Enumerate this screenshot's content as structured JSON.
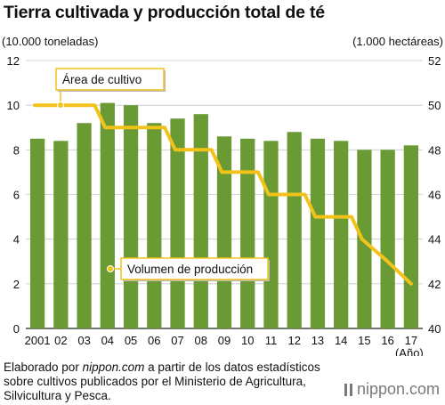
{
  "title": "Tierra cultivada y producción total de té",
  "source": {
    "prefix": "Elaborado por ",
    "site": "nippon.com",
    "rest": " a partir de los datos estadísticos sobre cultivos publicados por el Ministerio de Agricultura, Silvicultura y Pesca."
  },
  "brand": "nippon.com",
  "chart_data": {
    "type": "bar+line",
    "categories": [
      "2001",
      "02",
      "03",
      "04",
      "05",
      "06",
      "07",
      "08",
      "09",
      "10",
      "11",
      "12",
      "13",
      "14",
      "15",
      "16",
      "17"
    ],
    "x_unit": "(Año)",
    "series": [
      {
        "name": "Volumen de producción",
        "type": "bar",
        "axis": "left",
        "color": "#6a9a33",
        "values": [
          8.5,
          8.4,
          9.2,
          10.1,
          10.0,
          9.2,
          9.4,
          9.6,
          8.6,
          8.5,
          8.4,
          8.8,
          8.5,
          8.4,
          8.0,
          8.0,
          8.2
        ]
      },
      {
        "name": "Área de cultivo",
        "type": "line",
        "axis": "right",
        "color": "#f2c21b",
        "values": [
          50,
          50,
          50,
          49,
          49,
          49,
          48,
          48,
          47,
          47,
          46,
          46,
          45,
          45,
          44,
          43,
          42
        ]
      }
    ],
    "left_axis": {
      "label": "(10.000 toneladas)",
      "ylim": [
        0,
        12
      ],
      "ticks": [
        0,
        2,
        4,
        6,
        8,
        10,
        12
      ]
    },
    "right_axis": {
      "label": "(1.000 hectáreas)",
      "ylim": [
        40,
        52
      ],
      "ticks": [
        40,
        42,
        44,
        46,
        48,
        50,
        52
      ]
    },
    "grid": true,
    "annotations": [
      "Área de cultivo",
      "Volumen de producción"
    ]
  }
}
